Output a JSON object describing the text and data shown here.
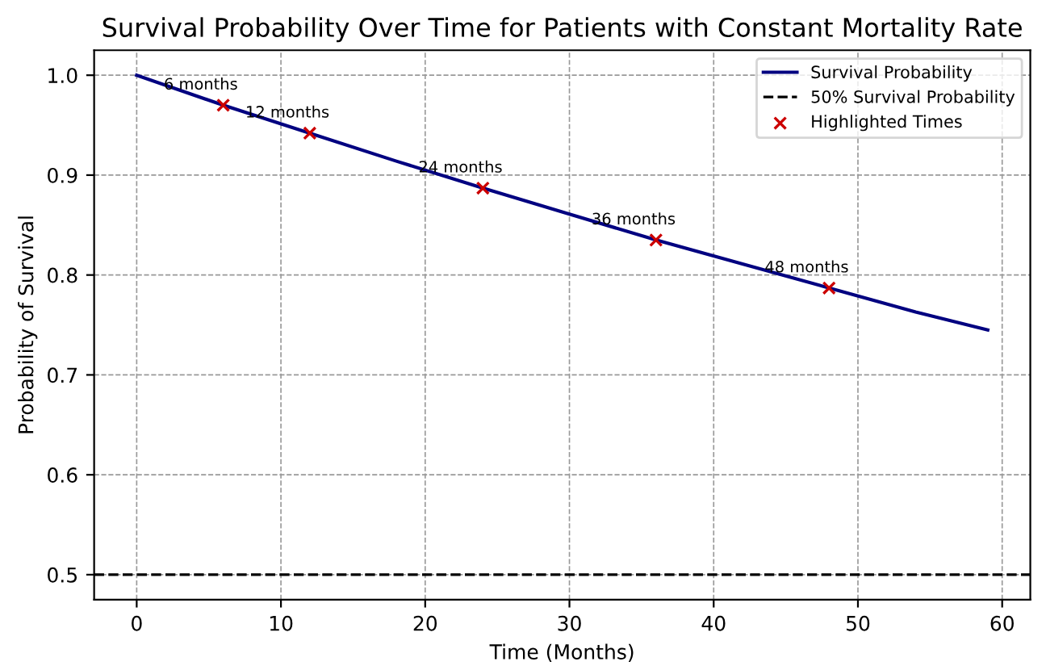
{
  "chart_data": {
    "type": "line",
    "title": "Survival Probability Over Time for Patients with Constant Mortality Rate",
    "xlabel": "Time (Months)",
    "ylabel": "Probability of Survival",
    "series": [
      {
        "name": "Survival Probability",
        "color": "#000080",
        "x": [
          0,
          6,
          12,
          18,
          24,
          30,
          36,
          42,
          48,
          54,
          59
        ],
        "values": [
          1.0,
          0.97,
          0.942,
          0.914,
          0.887,
          0.861,
          0.835,
          0.811,
          0.787,
          0.763,
          0.745
        ]
      },
      {
        "name": "Highlighted Times",
        "type": "scatter",
        "color": "#cc0000",
        "marker": "cross",
        "x": [
          6,
          12,
          24,
          36,
          48
        ],
        "values": [
          0.97,
          0.942,
          0.887,
          0.835,
          0.787
        ]
      }
    ],
    "ref_lines": [
      {
        "axis": "y",
        "value": 0.5,
        "label": "50% Survival Probability",
        "color": "#000000",
        "line_style": "dashed"
      }
    ],
    "annotations": [
      {
        "text": "6 months",
        "x": 6,
        "y": 0.97
      },
      {
        "text": "12 months",
        "x": 12,
        "y": 0.942
      },
      {
        "text": "24 months",
        "x": 24,
        "y": 0.887
      },
      {
        "text": "36 months",
        "x": 36,
        "y": 0.835
      },
      {
        "text": "48 months",
        "x": 48,
        "y": 0.787
      }
    ],
    "xlim": [
      -2.95,
      61.95
    ],
    "ylim": [
      0.475,
      1.025
    ],
    "xticks": [
      0,
      10,
      20,
      30,
      40,
      50,
      60
    ],
    "yticks": [
      0.5,
      0.6,
      0.7,
      0.8,
      0.9,
      {
        "value": 1.0,
        "label": "1.0"
      }
    ],
    "grid": true,
    "legend": "top right"
  }
}
